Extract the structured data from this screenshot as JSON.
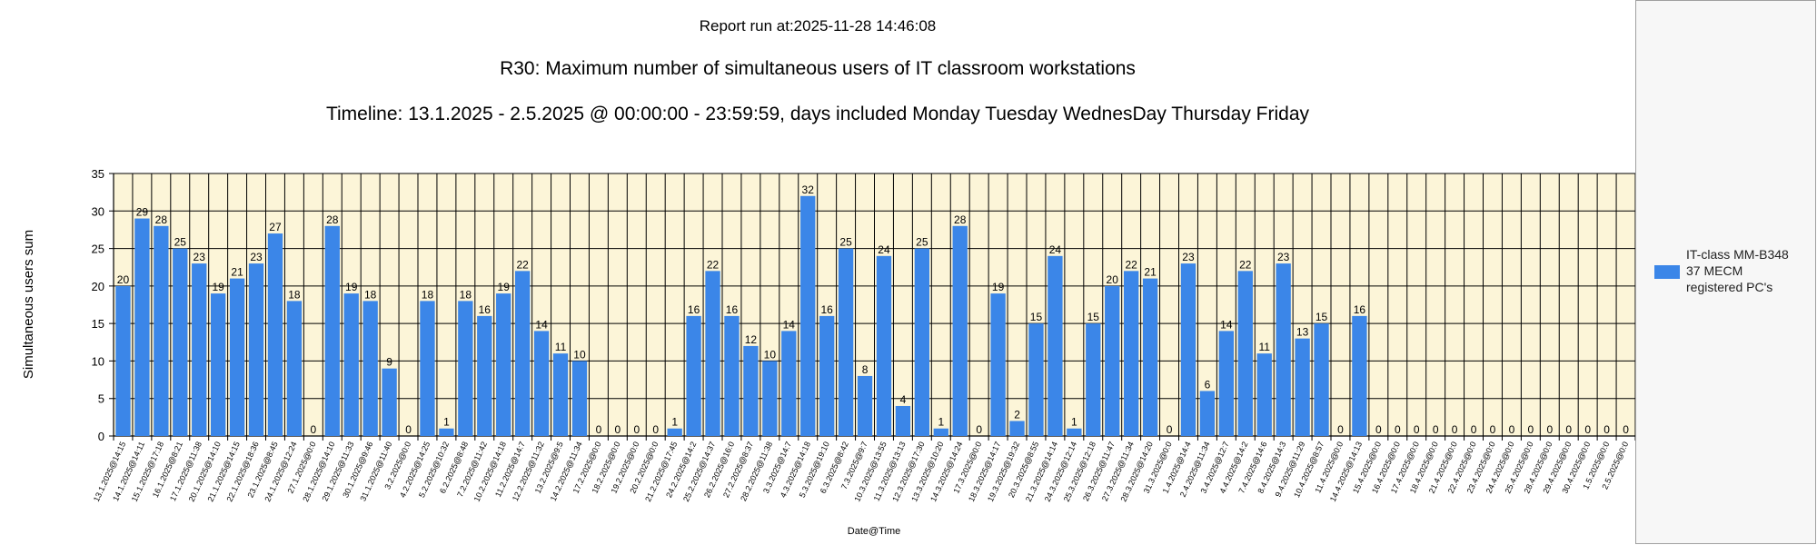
{
  "header": {
    "report_run": "Report run at:2025-11-28 14:46:08",
    "title": "R30: Maximum number of simultaneous users of IT classroom workstations",
    "subtitle": "Timeline: 13.1.2025  - 2.5.2025  @  00:00:00 -  23:59:59, days included Monday Tuesday WednesDay Thursday Friday"
  },
  "legend": {
    "label": "IT-class MM-B348\n37 MECM\nregistered PC's"
  },
  "colors": {
    "bar": "#3b86e8",
    "plot_background": "#fcf5d8",
    "grid": "#000000"
  },
  "chart_data": {
    "type": "bar",
    "xlabel": "Date@Time",
    "ylabel": "Simultaneous users sum",
    "ylim": [
      0,
      35
    ],
    "yticks": [
      0,
      5,
      10,
      15,
      20,
      25,
      30,
      35
    ],
    "grid": true,
    "legend_position": "right",
    "categories": [
      "13.1.2025@14:15",
      "14.1.2025@14:11",
      "15.1.2025@17:18",
      "16.1.2025@8:21",
      "17.1.2025@11:38",
      "20.1.2025@14:10",
      "21.1.2025@14:15",
      "22.1.2025@18:36",
      "23.1.2025@8:45",
      "24.1.2025@12:24",
      "27.1.2025@0:0",
      "28.1.2025@14:10",
      "29.1.2025@11:33",
      "30.1.2025@9:46",
      "31.1.2025@11:40",
      "3.2.2025@0:0",
      "4.2.2025@14:25",
      "5.2.2025@10:32",
      "6.2.2025@8:48",
      "7.2.2025@11:42",
      "10.2.2025@14:18",
      "11.2.2025@14:7",
      "12.2.2025@11:32",
      "13.2.2025@9:5",
      "14.2.2025@11:34",
      "17.2.2025@0:0",
      "18.2.2025@0:0",
      "19.2.2025@0:0",
      "20.2.2025@0:0",
      "21.2.2025@17:45",
      "24.2.2025@14:2",
      "25.2.2025@14:37",
      "26.2.2025@16:0",
      "27.2.2025@8:37",
      "28.2.2025@11:38",
      "3.3.2025@14:7",
      "4.3.2025@14:18",
      "5.3.2025@19:10",
      "6.3.2025@8:42",
      "7.3.2025@9:7",
      "10.3.2025@13:55",
      "11.3.2025@13:13",
      "12.3.2025@17:30",
      "13.3.2025@10:20",
      "14.3.2025@14:24",
      "17.3.2025@0:0",
      "18.3.2025@14:17",
      "19.3.2025@19:32",
      "20.3.2025@8:55",
      "21.3.2025@14:14",
      "24.3.2025@12:14",
      "25.3.2025@12:18",
      "26.3.2025@11:47",
      "27.3.2025@11:34",
      "28.3.2025@14:20",
      "31.3.2025@0:0",
      "1.4.2025@14:4",
      "2.4.2025@11:34",
      "3.4.2025@12:7",
      "4.4.2025@14:2",
      "7.4.2025@14:6",
      "8.4.2025@14:3",
      "9.4.2025@11:29",
      "10.4.2025@8:57",
      "11.4.2025@0:0",
      "14.4.2025@14:13",
      "15.4.2025@0:0",
      "16.4.2025@0:0",
      "17.4.2025@0:0",
      "18.4.2025@0:0",
      "21.4.2025@0:0",
      "22.4.2025@0:0",
      "23.4.2025@0:0",
      "24.4.2025@0:0",
      "25.4.2025@0:0",
      "28.4.2025@0:0",
      "29.4.2025@0:0",
      "30.4.2025@0:0",
      "1.5.2025@0:0",
      "2.5.2025@0:0"
    ],
    "series": [
      {
        "name": "IT-class MM-B348\n37 MECM\nregistered PC's",
        "values": [
          20,
          29,
          28,
          25,
          23,
          19,
          21,
          23,
          27,
          18,
          0,
          28,
          19,
          18,
          9,
          0,
          18,
          1,
          18,
          16,
          19,
          22,
          14,
          11,
          10,
          0,
          0,
          0,
          0,
          1,
          16,
          22,
          16,
          12,
          10,
          14,
          32,
          16,
          25,
          8,
          24,
          4,
          25,
          1,
          28,
          0,
          19,
          2,
          15,
          24,
          1,
          15,
          20,
          22,
          21,
          0,
          23,
          6,
          14,
          22,
          11,
          23,
          13,
          15,
          0,
          16,
          0,
          0,
          0,
          0,
          0,
          0,
          0,
          0,
          0,
          0,
          0,
          0,
          0,
          0
        ]
      }
    ]
  }
}
